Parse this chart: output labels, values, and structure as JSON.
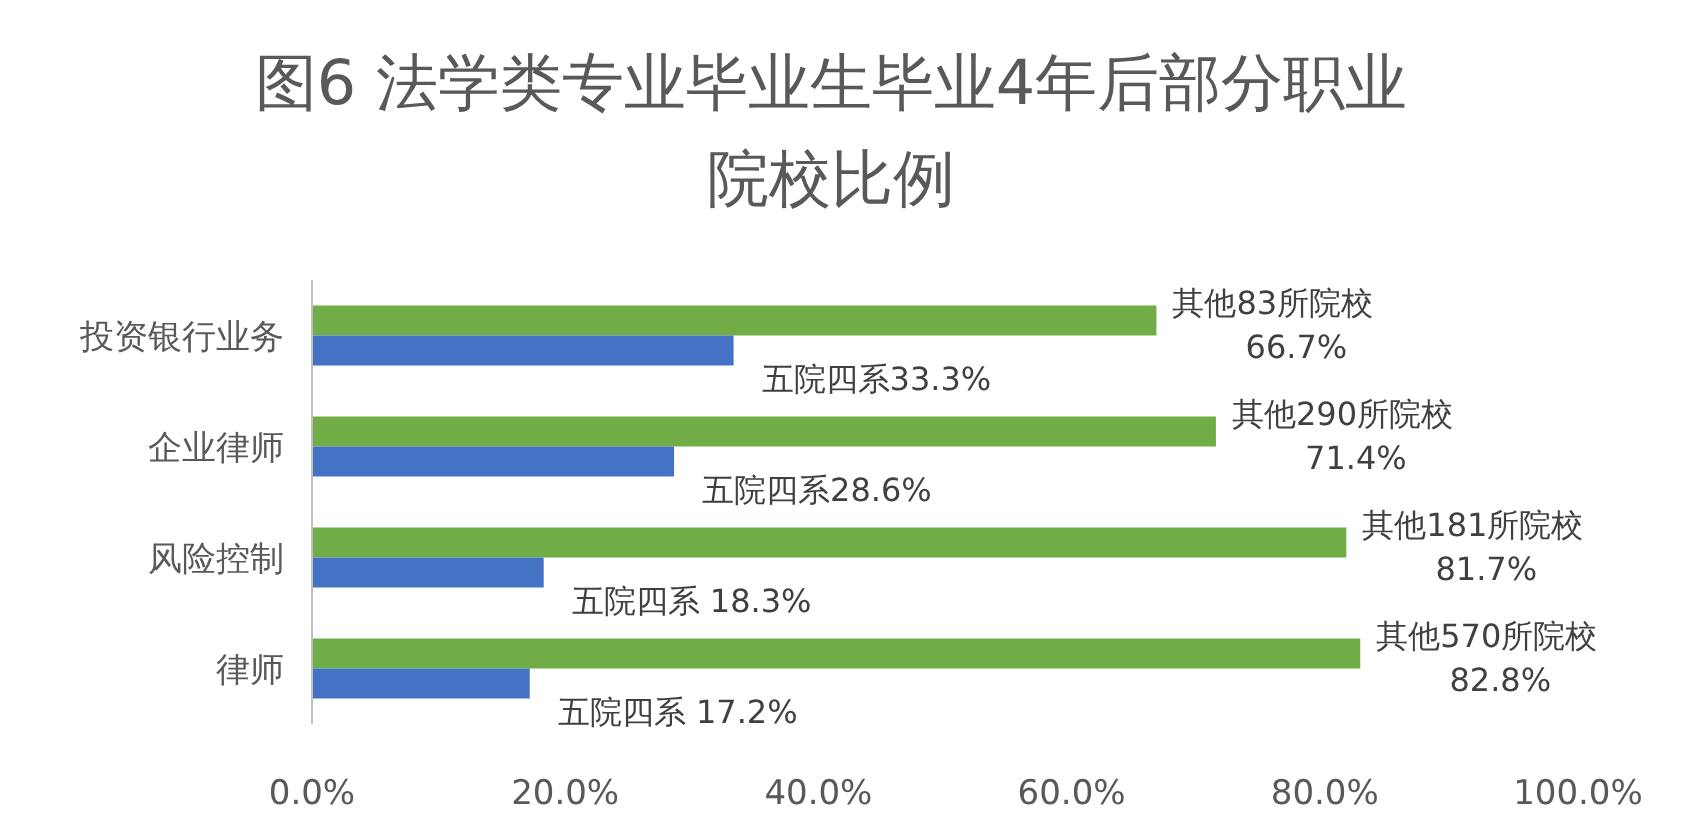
{
  "chart_data": {
    "type": "bar",
    "orientation": "horizontal",
    "title": "图6 法学类专业毕业生毕业4年后部分职业院校比例",
    "categories": [
      "投资银行业务",
      "企业律师",
      "风险控制",
      "律师"
    ],
    "series": [
      {
        "color": "#70ad47",
        "values": [
          66.7,
          71.4,
          81.7,
          82.8
        ],
        "value_labels": [
          "其他83所院校\n66.7%",
          "其他290所院校\n71.4%",
          "其他181所院校\n81.7%",
          "其他570所院校\n82.8%"
        ]
      },
      {
        "color": "#4472c4",
        "values": [
          33.3,
          28.6,
          18.3,
          17.2
        ],
        "value_labels": [
          "五院四系33.3%",
          "五院四系28.6%",
          "五院四系 18.3%",
          "五院四系 17.2%"
        ]
      }
    ],
    "xlim": [
      0,
      100
    ],
    "xticks": [
      {
        "value": 0,
        "label": "0.0%"
      },
      {
        "value": 20,
        "label": "20.0%"
      },
      {
        "value": 40,
        "label": "40.0%"
      },
      {
        "value": 60,
        "label": "60.0%"
      },
      {
        "value": 80,
        "label": "80.0%"
      },
      {
        "value": 100,
        "label": "100.0%"
      }
    ],
    "grid": false
  }
}
